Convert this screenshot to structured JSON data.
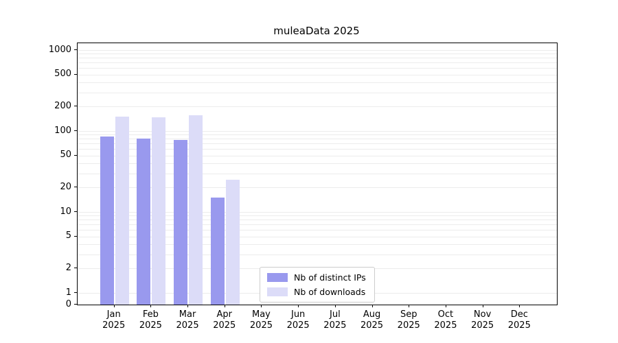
{
  "chart_data": {
    "type": "bar",
    "title": "muleaData 2025",
    "categories": [
      "Jan",
      "Feb",
      "Mar",
      "Apr",
      "May",
      "Jun",
      "Jul",
      "Aug",
      "Sep",
      "Oct",
      "Nov",
      "Dec"
    ],
    "category_year": "2025",
    "series": [
      {
        "name": "Nb of distinct IPs",
        "color": "#9999ee",
        "values": [
          85,
          80,
          78,
          15,
          0,
          0,
          0,
          0,
          0,
          0,
          0,
          0
        ]
      },
      {
        "name": "Nb of downloads",
        "color": "#dcdcf8",
        "values": [
          150,
          148,
          158,
          25,
          0,
          0,
          0,
          0,
          0,
          0,
          0,
          0
        ]
      }
    ],
    "yscale": "symlog",
    "yticks": [
      0,
      1,
      2,
      5,
      10,
      20,
      50,
      100,
      200,
      500,
      1000
    ],
    "minor_gridlines": [
      1,
      2,
      3,
      4,
      5,
      6,
      7,
      8,
      9,
      10,
      20,
      30,
      40,
      50,
      60,
      70,
      80,
      90,
      100,
      200,
      300,
      400,
      500,
      600,
      700,
      800,
      900,
      1000
    ],
    "ylim": [
      0,
      1400
    ],
    "xlabel": "",
    "ylabel": "",
    "grid": "horizontal",
    "legend_position": "lower-left-inside"
  }
}
